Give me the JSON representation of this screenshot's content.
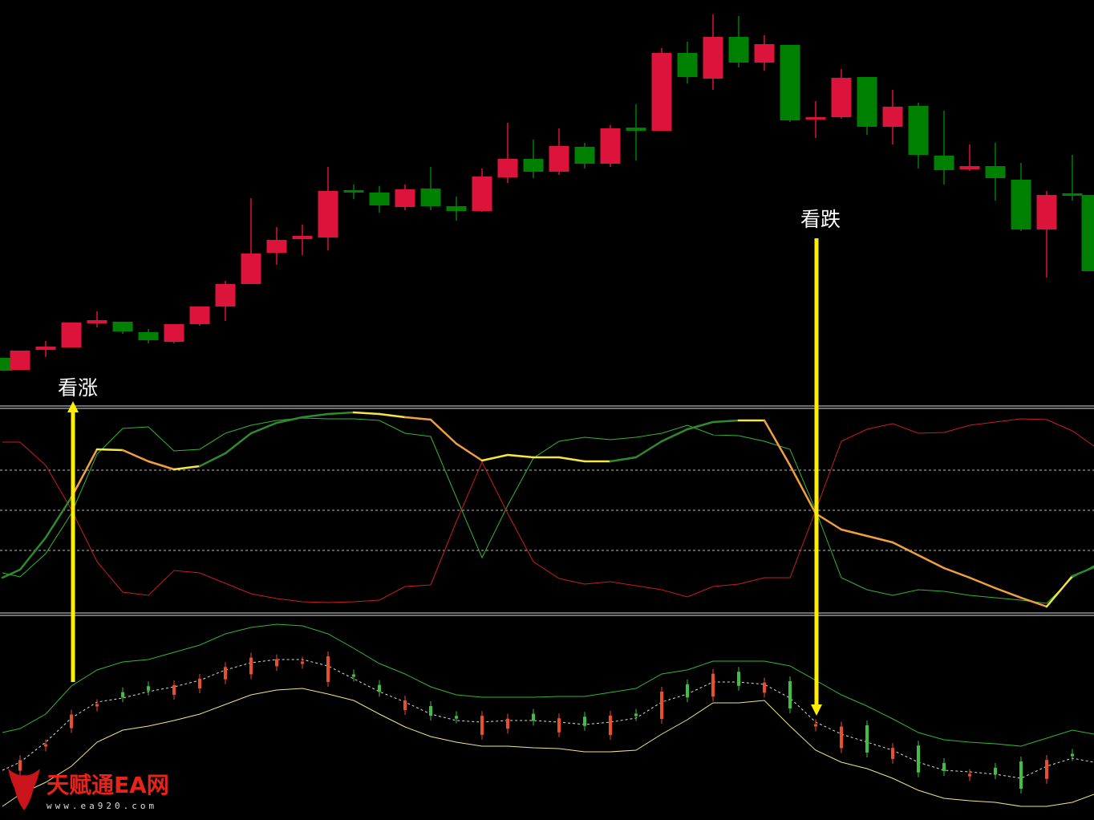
{
  "labels": {
    "bullish": "看涨",
    "bearish": "看跌"
  },
  "watermark": {
    "name": "天赋通EA网",
    "url": "www.ea920.com"
  }
}
